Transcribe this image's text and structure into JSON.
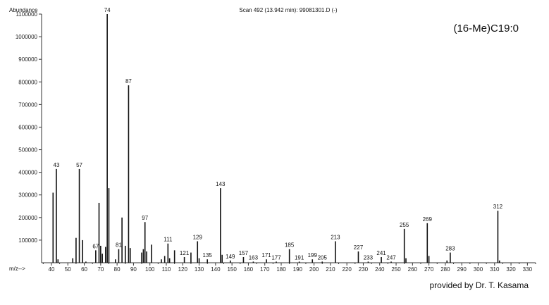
{
  "chart_data": {
    "type": "bar",
    "title": "Scan 492 (13.942 min): 99081301.D (-)",
    "ylabel": "Abundance",
    "xlabel": "m/z-->",
    "compound_label": "(16-Me)C19:0",
    "credit": "provided by Dr. T. Kasama",
    "xlim": [
      34,
      335
    ],
    "ylim": [
      0,
      1100000
    ],
    "xticks": [
      40,
      50,
      60,
      70,
      80,
      90,
      100,
      110,
      120,
      130,
      140,
      150,
      160,
      170,
      180,
      190,
      200,
      210,
      220,
      230,
      240,
      250,
      260,
      270,
      280,
      290,
      300,
      310,
      320,
      330
    ],
    "yticks": [
      {
        "value": 100000,
        "label": "100000"
      },
      {
        "value": 200000,
        "label": "200000"
      },
      {
        "value": 300000,
        "label": "300000"
      },
      {
        "value": 400000,
        "label": "400000"
      },
      {
        "value": 500000,
        "label": "500000"
      },
      {
        "value": 600000,
        "label": "600000"
      },
      {
        "value": 700000,
        "label": "700000"
      },
      {
        "value": 800000,
        "label": "800000"
      },
      {
        "value": 900000,
        "label": "900000"
      },
      {
        "value": 1000000,
        "label": "1000000"
      },
      {
        "value": 1100000,
        "label": "1100000"
      }
    ],
    "peaks": [
      {
        "mz": 41,
        "abundance": 310000,
        "label": ""
      },
      {
        "mz": 43,
        "abundance": 415000,
        "label": "43"
      },
      {
        "mz": 44,
        "abundance": 15000,
        "label": ""
      },
      {
        "mz": 53,
        "abundance": 20000,
        "label": ""
      },
      {
        "mz": 55,
        "abundance": 110000,
        "label": ""
      },
      {
        "mz": 57,
        "abundance": 415000,
        "label": "57"
      },
      {
        "mz": 59,
        "abundance": 100000,
        "label": ""
      },
      {
        "mz": 61,
        "abundance": 5000,
        "label": ""
      },
      {
        "mz": 67,
        "abundance": 55000,
        "label": "67"
      },
      {
        "mz": 69,
        "abundance": 265000,
        "label": ""
      },
      {
        "mz": 70,
        "abundance": 75000,
        "label": ""
      },
      {
        "mz": 71,
        "abundance": 40000,
        "label": ""
      },
      {
        "mz": 73,
        "abundance": 70000,
        "label": ""
      },
      {
        "mz": 74,
        "abundance": 1100000,
        "label": "74"
      },
      {
        "mz": 75,
        "abundance": 330000,
        "label": ""
      },
      {
        "mz": 79,
        "abundance": 15000,
        "label": ""
      },
      {
        "mz": 81,
        "abundance": 60000,
        "label": "81"
      },
      {
        "mz": 83,
        "abundance": 200000,
        "label": ""
      },
      {
        "mz": 85,
        "abundance": 75000,
        "label": ""
      },
      {
        "mz": 87,
        "abundance": 785000,
        "label": "87"
      },
      {
        "mz": 88,
        "abundance": 65000,
        "label": ""
      },
      {
        "mz": 95,
        "abundance": 45000,
        "label": ""
      },
      {
        "mz": 96,
        "abundance": 60000,
        "label": ""
      },
      {
        "mz": 97,
        "abundance": 180000,
        "label": "97"
      },
      {
        "mz": 98,
        "abundance": 50000,
        "label": ""
      },
      {
        "mz": 101,
        "abundance": 80000,
        "label": ""
      },
      {
        "mz": 107,
        "abundance": 15000,
        "label": ""
      },
      {
        "mz": 109,
        "abundance": 30000,
        "label": ""
      },
      {
        "mz": 111,
        "abundance": 85000,
        "label": "111"
      },
      {
        "mz": 112,
        "abundance": 20000,
        "label": ""
      },
      {
        "mz": 115,
        "abundance": 55000,
        "label": ""
      },
      {
        "mz": 121,
        "abundance": 25000,
        "label": "121"
      },
      {
        "mz": 125,
        "abundance": 45000,
        "label": ""
      },
      {
        "mz": 129,
        "abundance": 95000,
        "label": "129"
      },
      {
        "mz": 130,
        "abundance": 20000,
        "label": ""
      },
      {
        "mz": 135,
        "abundance": 15000,
        "label": "135"
      },
      {
        "mz": 143,
        "abundance": 330000,
        "label": "143"
      },
      {
        "mz": 144,
        "abundance": 35000,
        "label": ""
      },
      {
        "mz": 149,
        "abundance": 10000,
        "label": "149"
      },
      {
        "mz": 157,
        "abundance": 25000,
        "label": "157"
      },
      {
        "mz": 163,
        "abundance": 5000,
        "label": "163"
      },
      {
        "mz": 171,
        "abundance": 15000,
        "label": "171"
      },
      {
        "mz": 177,
        "abundance": 5000,
        "label": "177"
      },
      {
        "mz": 185,
        "abundance": 60000,
        "label": "185"
      },
      {
        "mz": 191,
        "abundance": 5000,
        "label": "191"
      },
      {
        "mz": 199,
        "abundance": 15000,
        "label": "199"
      },
      {
        "mz": 205,
        "abundance": 5000,
        "label": "205"
      },
      {
        "mz": 213,
        "abundance": 95000,
        "label": "213"
      },
      {
        "mz": 227,
        "abundance": 50000,
        "label": "227"
      },
      {
        "mz": 233,
        "abundance": 5000,
        "label": "233"
      },
      {
        "mz": 241,
        "abundance": 25000,
        "label": "241"
      },
      {
        "mz": 247,
        "abundance": 5000,
        "label": "247"
      },
      {
        "mz": 255,
        "abundance": 150000,
        "label": "255"
      },
      {
        "mz": 256,
        "abundance": 20000,
        "label": ""
      },
      {
        "mz": 269,
        "abundance": 175000,
        "label": "269"
      },
      {
        "mz": 270,
        "abundance": 30000,
        "label": ""
      },
      {
        "mz": 281,
        "abundance": 10000,
        "label": ""
      },
      {
        "mz": 283,
        "abundance": 45000,
        "label": "283"
      },
      {
        "mz": 312,
        "abundance": 230000,
        "label": "312"
      },
      {
        "mz": 313,
        "abundance": 10000,
        "label": ""
      }
    ]
  }
}
